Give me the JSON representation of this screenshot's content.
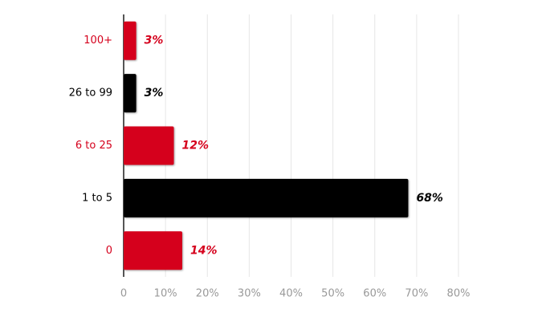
{
  "chart_data": {
    "type": "bar",
    "orientation": "horizontal",
    "categories": [
      "100+",
      "26 to 99",
      "6 to 25",
      "1 to 5",
      "0"
    ],
    "values": [
      3,
      3,
      12,
      68,
      14
    ],
    "value_labels": [
      "3%",
      "3%",
      "12%",
      "68%",
      "14%"
    ],
    "colors": [
      "#d5001c",
      "#000000",
      "#d5001c",
      "#000000",
      "#d5001c"
    ],
    "xlim": [
      0,
      80
    ],
    "xticks": [
      0,
      {
        "value": 10,
        "label": "10%"
      },
      {
        "value": 20,
        "label": "20%"
      },
      {
        "value": 30,
        "label": "30%"
      },
      {
        "value": 40,
        "label": "40%"
      },
      {
        "value": 50,
        "label": "50%"
      },
      {
        "value": 60,
        "label": "60%"
      },
      {
        "value": 70,
        "label": "70%"
      },
      {
        "value": 80,
        "label": "80%"
      }
    ],
    "grid": true
  }
}
